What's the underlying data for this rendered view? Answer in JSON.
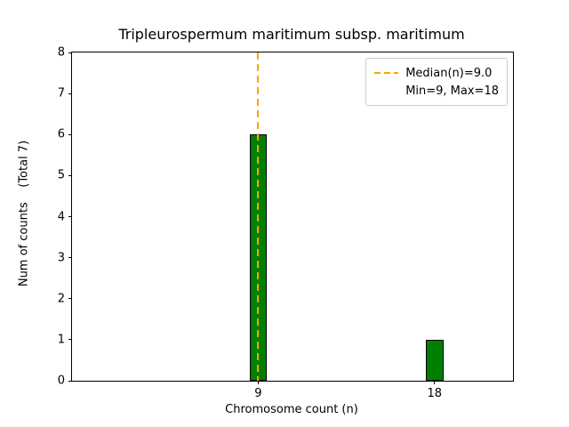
{
  "chart_data": {
    "type": "bar",
    "title": "Tripleurospermum maritimum subsp. maritimum",
    "xlabel": "Chromosome count (n)",
    "ylabel": "Num of counts    (Total 7)",
    "categories": [
      9,
      18
    ],
    "values": [
      6,
      1
    ],
    "total_counts": 7,
    "median": 9.0,
    "min": 9,
    "max": 18,
    "xlim": [
      -0.5,
      22.0
    ],
    "ylim": [
      0,
      8
    ],
    "yticks": [
      0,
      1,
      2,
      3,
      4,
      5,
      6,
      7,
      8
    ],
    "xticks": [
      9,
      18
    ],
    "bar_width": 0.9,
    "bar_color": "#008000",
    "bar_edge_color": "#000000",
    "median_line_color": "#FFA500",
    "grid": false,
    "legend_position": "upper right",
    "legend": [
      "Median(n)=9.0",
      "Min=9, Max=18"
    ]
  }
}
